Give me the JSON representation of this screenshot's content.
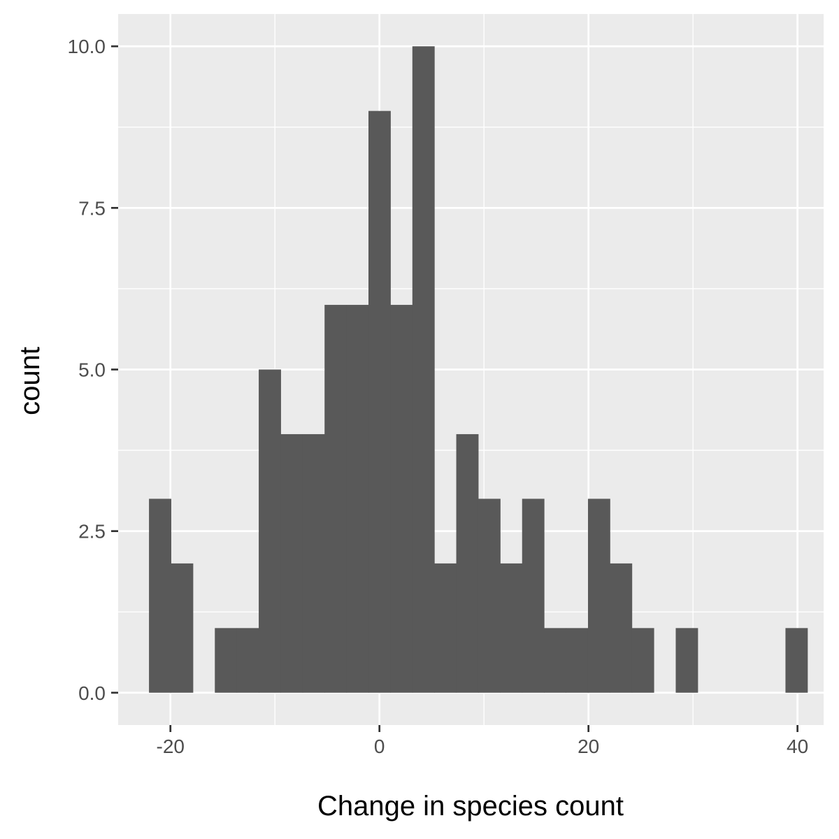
{
  "chart_data": {
    "type": "bar",
    "xlabel": "Change in species count",
    "ylabel": "count",
    "xlim": [
      -25,
      42.5
    ],
    "ylim": [
      -0.5,
      10.5
    ],
    "x_ticks": [
      -20,
      0,
      20,
      40
    ],
    "x_tick_labels": [
      "-20",
      "0",
      "20",
      "40"
    ],
    "x_minor_grid": [
      -10,
      10,
      30
    ],
    "y_ticks": [
      0,
      2.5,
      5,
      7.5,
      10
    ],
    "y_tick_labels": [
      "0.0",
      "2.5",
      "5.0",
      "7.5",
      "10.0"
    ],
    "y_minor_grid": [
      1.25,
      3.75,
      6.25,
      8.75
    ],
    "bin_width": 2.1,
    "bins": [
      {
        "x": -21.0,
        "count": 3
      },
      {
        "x": -18.9,
        "count": 2
      },
      {
        "x": -16.8,
        "count": 0
      },
      {
        "x": -14.7,
        "count": 1
      },
      {
        "x": -12.6,
        "count": 1
      },
      {
        "x": -10.5,
        "count": 5
      },
      {
        "x": -8.4,
        "count": 4
      },
      {
        "x": -6.3,
        "count": 4
      },
      {
        "x": -4.2,
        "count": 6
      },
      {
        "x": -2.1,
        "count": 6
      },
      {
        "x": 0.0,
        "count": 9
      },
      {
        "x": 2.1,
        "count": 6
      },
      {
        "x": 4.2,
        "count": 10
      },
      {
        "x": 6.3,
        "count": 2
      },
      {
        "x": 8.4,
        "count": 4
      },
      {
        "x": 10.5,
        "count": 3
      },
      {
        "x": 12.6,
        "count": 2
      },
      {
        "x": 14.7,
        "count": 3
      },
      {
        "x": 16.8,
        "count": 1
      },
      {
        "x": 18.9,
        "count": 1
      },
      {
        "x": 21.0,
        "count": 3
      },
      {
        "x": 23.1,
        "count": 2
      },
      {
        "x": 25.2,
        "count": 1
      },
      {
        "x": 27.3,
        "count": 0
      },
      {
        "x": 29.4,
        "count": 1
      },
      {
        "x": 31.5,
        "count": 0
      },
      {
        "x": 33.6,
        "count": 0
      },
      {
        "x": 35.7,
        "count": 0
      },
      {
        "x": 37.8,
        "count": 0
      },
      {
        "x": 39.9,
        "count": 1
      }
    ],
    "colors": {
      "panel": "#ebebeb",
      "grid": "#ffffff",
      "bar": "#595959",
      "tick": "#333333"
    }
  }
}
